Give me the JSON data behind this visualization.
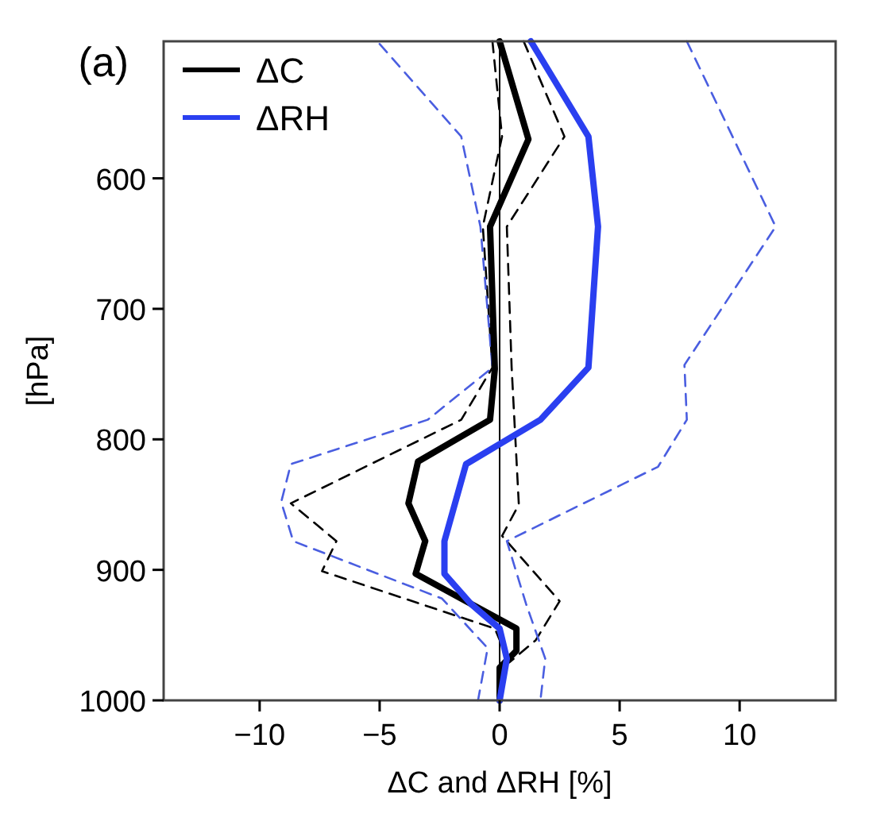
{
  "chart_data": {
    "type": "line",
    "title": "(a)",
    "xlabel": "ΔC and ΔRH [%]",
    "ylabel": "[hPa]",
    "xlim": [
      -14,
      14
    ],
    "ylim": [
      1000,
      495
    ],
    "xticks": [
      -10,
      -5,
      0,
      5,
      10
    ],
    "yticks": [
      600,
      700,
      800,
      900,
      1000
    ],
    "grid": false,
    "legend": "top left",
    "marker": "none",
    "series": [
      {
        "color": "#000000",
        "line_style": "dashed",
        "x": [
          -0.3,
          0.1,
          -0.7,
          -0.3,
          -1.6,
          -8.7,
          -6.8,
          -7.4,
          -0.2,
          0.4
        ],
        "values": [
          495,
          568,
          637,
          745,
          785,
          849,
          878,
          901,
          945,
          971
        ]
      },
      {
        "color": "#000000",
        "line_style": "dashed",
        "x": [
          1.0,
          2.7,
          0.3,
          0.5,
          0.8,
          0.1,
          2.5,
          1.5,
          0.4
        ],
        "values": [
          495,
          568,
          637,
          745,
          850,
          874,
          924,
          954,
          971
        ]
      },
      {
        "color": "#4a5ee0",
        "line_style": "dashed",
        "x": [
          -5,
          -1.6,
          -0.8,
          -0.3,
          -3,
          -8.7,
          -9.1,
          -8.6,
          -2.4,
          -0.5,
          -0.9
        ],
        "values": [
          497,
          568,
          637,
          745,
          785,
          819,
          848,
          878,
          922,
          960,
          1000
        ]
      },
      {
        "color": "#4a5ee0",
        "line_style": "dashed",
        "x": [
          7.8,
          9.6,
          11.5,
          7.7,
          7.8,
          6.6,
          0.3,
          1.1,
          1.9,
          1.7
        ],
        "values": [
          495,
          564,
          637,
          743,
          785,
          821,
          878,
          926,
          968,
          1000
        ]
      },
      {
        "name": "ΔC",
        "color": "#000000",
        "line_style": "solid",
        "x": [
          0,
          1.2,
          -0.4,
          -0.2,
          -0.4,
          -3.4,
          -3.8,
          -3.1,
          -3.5,
          0.7,
          0.7,
          0,
          0
        ],
        "values": [
          495,
          570,
          637,
          746,
          785,
          817,
          849,
          878,
          903,
          945,
          962,
          975,
          1000
        ]
      },
      {
        "name": "ΔRH",
        "color": "#2a3ff0",
        "line_style": "solid",
        "x": [
          1.3,
          3.7,
          4.1,
          3.7,
          1.7,
          -1.4,
          -2.3,
          -2.3,
          -1.2,
          0,
          0.3,
          0
        ],
        "values": [
          495,
          568,
          637,
          745,
          785,
          819,
          878,
          903,
          926,
          945,
          968,
          1000
        ]
      }
    ],
    "ref_lines": [
      {
        "axis": "x",
        "value": 0,
        "color": "#000000",
        "line_style": "solid"
      }
    ]
  }
}
